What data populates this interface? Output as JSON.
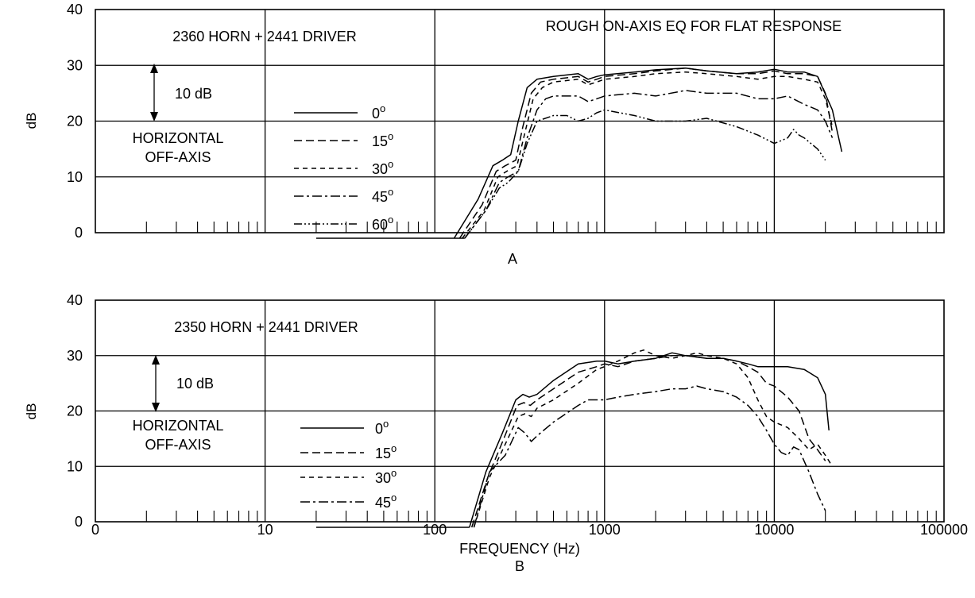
{
  "figure": {
    "panel_labels": [
      "A",
      "B"
    ],
    "xlabel": "FREQUENCY (Hz)",
    "ylabel": "dB",
    "x_ticklabels": [
      "0",
      "10",
      "100",
      "1000",
      "10000",
      "100000"
    ],
    "y_ticklabels": [
      "0",
      "10",
      "20",
      "30",
      "40"
    ],
    "legend_degree_symbol": "o",
    "scale_bar_label": "10 dB",
    "off_axis_label_line1": "HORIZONTAL",
    "off_axis_label_line2": "OFF-AXIS"
  },
  "chart_data": [
    {
      "type": "line",
      "panel": "A",
      "title": "2360 HORN + 2441 DRIVER",
      "annotation": "ROUGH ON-AXIS EQ FOR FLAT RESPONSE",
      "xlabel": "",
      "ylabel": "dB",
      "x_scale": "log",
      "xlim": [
        1,
        100000
      ],
      "ylim": [
        0,
        40
      ],
      "grid": true,
      "legend_placement": "center-left",
      "baseline": {
        "x": [
          20,
          150
        ],
        "y": [
          -1,
          -1
        ]
      },
      "series": [
        {
          "name": "0",
          "dash": "solid",
          "x": [
            130,
            180,
            220,
            250,
            280,
            310,
            350,
            400,
            500,
            700,
            800,
            900,
            1000,
            1500,
            2000,
            3000,
            4000,
            6000,
            8000,
            10000,
            12000,
            15000,
            18000,
            22000,
            25000
          ],
          "y": [
            -1,
            6,
            12,
            13,
            14,
            20,
            26,
            27.5,
            28,
            28.5,
            27.5,
            28,
            28.3,
            28.8,
            29.2,
            29.5,
            29,
            28.5,
            28.8,
            29.3,
            28.8,
            28.8,
            28,
            22,
            14.5
          ]
        },
        {
          "name": "15",
          "dash": "10,5",
          "x": [
            140,
            190,
            230,
            260,
            300,
            330,
            370,
            420,
            500,
            700,
            800,
            900,
            1000,
            1500,
            2000,
            3000,
            4000,
            6000,
            8000,
            10000,
            12000,
            15000,
            18000,
            20000,
            22000
          ],
          "y": [
            -1,
            5,
            11,
            12,
            13,
            19,
            25,
            27,
            27.5,
            28,
            27,
            27.5,
            28,
            28.5,
            29,
            29.5,
            29,
            28.5,
            28.5,
            29,
            28.5,
            28.5,
            28,
            25,
            18
          ]
        },
        {
          "name": "30",
          "dash": "6,5",
          "x": [
            145,
            195,
            235,
            265,
            305,
            340,
            380,
            430,
            500,
            700,
            800,
            900,
            1000,
            1500,
            2000,
            3000,
            4000,
            6000,
            8000,
            10000,
            12000,
            15000,
            18000,
            20000,
            22000
          ],
          "y": [
            -1,
            4,
            10,
            11,
            12,
            18,
            24,
            26,
            27,
            27.5,
            26.5,
            27,
            27.5,
            28,
            28.5,
            28.8,
            28.5,
            28,
            27.5,
            28,
            28,
            27.5,
            27,
            24,
            19
          ]
        },
        {
          "name": "45",
          "dash": "12,4,3,4",
          "x": [
            150,
            200,
            240,
            270,
            310,
            350,
            400,
            450,
            500,
            700,
            800,
            900,
            1000,
            1500,
            2000,
            3000,
            4000,
            6000,
            8000,
            10000,
            12000,
            15000,
            18000,
            20000,
            22000
          ],
          "y": [
            -1,
            4,
            9,
            10,
            11,
            17,
            22,
            24,
            24.5,
            24.5,
            23.5,
            24,
            24.5,
            25,
            24.5,
            25.5,
            25,
            25,
            24,
            24,
            24.5,
            23,
            22,
            20,
            17
          ]
        },
        {
          "name": "60",
          "dash": "10,3,2,3,2,3",
          "x": [
            150,
            200,
            240,
            270,
            310,
            350,
            400,
            500,
            600,
            700,
            800,
            900,
            1000,
            1500,
            2000,
            3000,
            4000,
            6000,
            8000,
            10000,
            11000,
            12000,
            13000,
            14000,
            15000,
            18000,
            20000
          ],
          "y": [
            -1,
            4,
            8,
            9,
            11,
            16,
            20,
            21,
            21,
            20,
            20.5,
            21.5,
            22,
            21,
            20,
            20,
            20.5,
            19,
            17.5,
            16,
            16.5,
            17,
            18.5,
            17.5,
            17,
            15,
            13
          ]
        }
      ]
    },
    {
      "type": "line",
      "panel": "B",
      "title": "2350 HORN + 2441 DRIVER",
      "xlabel": "FREQUENCY (Hz)",
      "ylabel": "dB",
      "x_scale": "log",
      "xlim": [
        1,
        100000
      ],
      "ylim": [
        0,
        40
      ],
      "grid": true,
      "legend_placement": "center-left",
      "baseline": {
        "x": [
          20,
          160
        ],
        "y": [
          -1,
          -1
        ]
      },
      "series": [
        {
          "name": "0",
          "dash": "solid",
          "x": [
            160,
            200,
            250,
            300,
            330,
            360,
            400,
            500,
            700,
            900,
            1000,
            1200,
            1500,
            2000,
            2500,
            3000,
            4000,
            5000,
            6000,
            7000,
            8000,
            10000,
            12000,
            15000,
            18000,
            20000,
            21000
          ],
          "y": [
            -1,
            9,
            16,
            22,
            23,
            22.5,
            23,
            25.5,
            28.5,
            29,
            29,
            28.5,
            29,
            29.5,
            30.5,
            30,
            29.5,
            29.5,
            29,
            28.5,
            28,
            28,
            28,
            27.5,
            26,
            23,
            16.5
          ]
        },
        {
          "name": "15",
          "dash": "10,5",
          "x": [
            165,
            205,
            255,
            305,
            335,
            365,
            400,
            500,
            700,
            900,
            1000,
            1200,
            1500,
            2000,
            2500,
            3000,
            4000,
            5000,
            6000,
            7000,
            8000,
            9000,
            10000,
            12000,
            14000,
            16000,
            18000,
            20000
          ],
          "y": [
            -1,
            8,
            15,
            21,
            21.5,
            21,
            22,
            24,
            27,
            28,
            28.5,
            28,
            29,
            29.5,
            30,
            30,
            29.5,
            29.5,
            29,
            28,
            27,
            25,
            24.5,
            22.5,
            20,
            15,
            13,
            11
          ]
        },
        {
          "name": "30",
          "dash": "6,5",
          "x": [
            170,
            210,
            260,
            310,
            340,
            370,
            400,
            500,
            700,
            900,
            1000,
            1200,
            1500,
            1700,
            2000,
            2500,
            3000,
            3500,
            4000,
            5000,
            6000,
            7000,
            8000,
            9000,
            10000,
            12000,
            14000,
            16000,
            18000,
            20000,
            22000
          ],
          "y": [
            -1,
            8,
            14,
            19,
            19.5,
            19,
            20.5,
            22,
            25,
            27.5,
            28,
            29,
            30.5,
            31,
            30,
            29.5,
            30,
            30.5,
            30,
            29.5,
            28.5,
            26,
            22,
            19,
            18,
            17,
            15,
            13,
            14,
            12,
            10
          ]
        },
        {
          "name": "45",
          "dash": "12,4,3,4",
          "x": [
            170,
            210,
            260,
            310,
            340,
            370,
            400,
            500,
            700,
            800,
            900,
            1000,
            1200,
            1500,
            2000,
            2500,
            3000,
            3500,
            4000,
            5000,
            6000,
            7000,
            8000,
            9000,
            10000,
            11000,
            12000,
            13000,
            14000,
            16000,
            18000,
            20000
          ],
          "y": [
            -1,
            9,
            12,
            17,
            16,
            14.5,
            15.5,
            18,
            21,
            22,
            22,
            22,
            22.5,
            23,
            23.5,
            24,
            24,
            24.5,
            24,
            23.5,
            22.5,
            21,
            19,
            16.5,
            14,
            12.5,
            12,
            13.5,
            13,
            9,
            5,
            2
          ]
        }
      ]
    }
  ]
}
